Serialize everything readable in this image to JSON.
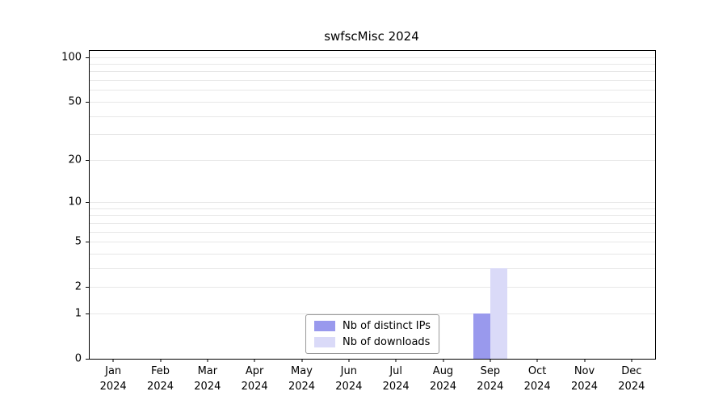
{
  "chart_data": {
    "type": "bar",
    "title": "swfscMisc 2024",
    "categories": [
      "Jan 2024",
      "Feb 2024",
      "Mar 2024",
      "Apr 2024",
      "May 2024",
      "Jun 2024",
      "Jul 2024",
      "Aug 2024",
      "Sep 2024",
      "Oct 2024",
      "Nov 2024",
      "Dec 2024"
    ],
    "series": [
      {
        "name": "Nb of distinct IPs",
        "color": "#9999ed",
        "values": [
          0,
          0,
          0,
          0,
          0,
          0,
          0,
          0,
          1,
          0,
          0,
          0
        ]
      },
      {
        "name": "Nb of downloads",
        "color": "#dadaf8",
        "values": [
          0,
          0,
          0,
          0,
          0,
          0,
          0,
          0,
          3,
          0,
          0,
          0
        ]
      }
    ],
    "xlabel": "",
    "ylabel": "",
    "y_ticks": [
      0,
      1,
      2,
      5,
      10,
      20,
      50,
      100
    ],
    "y_scale": "log1p",
    "ylim": [
      0,
      110
    ],
    "grid": true,
    "legend_position": "lower center",
    "axis_color": "#000000",
    "grid_color": "#e7e7e7"
  }
}
